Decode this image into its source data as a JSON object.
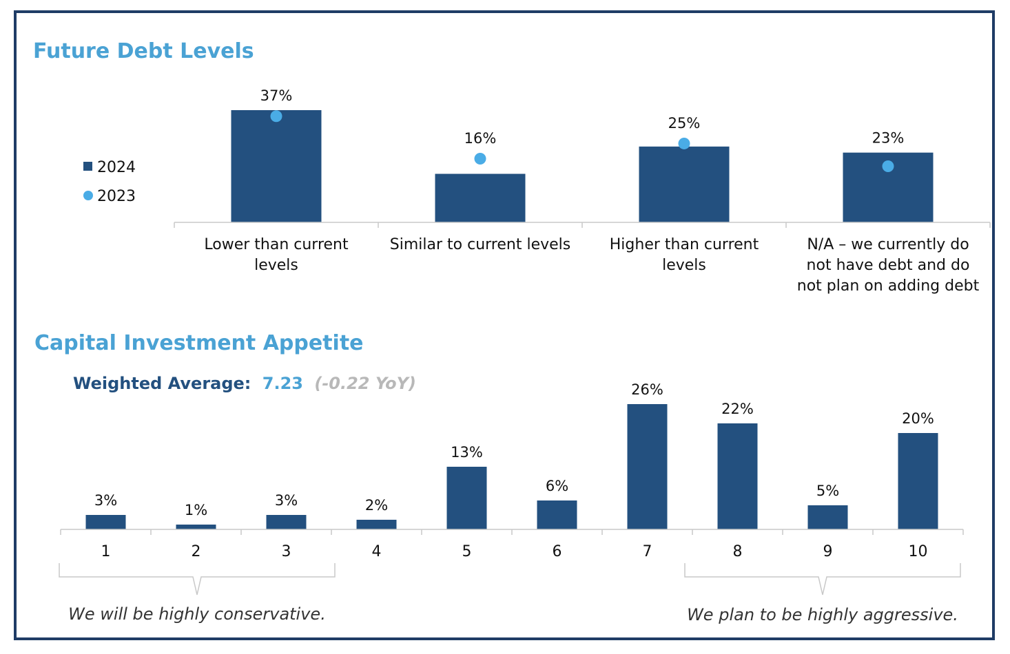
{
  "colors": {
    "frame": "#1f3c66",
    "bar": "#23507f",
    "dot": "#4aace6",
    "title": "#4aa2d4",
    "wa_label": "#23507f",
    "wa_value": "#4aa2d4",
    "wa_change": "#b8b8b8",
    "axis": "#c8c8c8"
  },
  "chart_data": [
    {
      "type": "bar",
      "title": "Future Debt Levels",
      "categories": [
        [
          "Lower than current",
          "levels"
        ],
        [
          "Similar to current levels"
        ],
        [
          "Higher than current",
          "levels"
        ],
        [
          "N/A – we currently do",
          "not have debt and do",
          "not plan on adding debt"
        ]
      ],
      "series": [
        {
          "name": "2024",
          "kind": "bar",
          "values": [
            37,
            16,
            25,
            23
          ]
        },
        {
          "name": "2023",
          "kind": "dot",
          "values": [
            35,
            21,
            26,
            18.5
          ]
        }
      ],
      "data_labels": [
        "37%",
        "16%",
        "25%",
        "23%"
      ],
      "ylim": [
        0,
        40
      ],
      "legend_position": "left"
    },
    {
      "type": "bar",
      "title": "Capital Investment Appetite",
      "subtitle": {
        "label": "Weighted Average:",
        "value": "7.23",
        "change": "(-0.22 YoY)"
      },
      "categories": [
        "1",
        "2",
        "3",
        "4",
        "5",
        "6",
        "7",
        "8",
        "9",
        "10"
      ],
      "values": [
        3,
        1,
        3,
        2,
        13,
        6,
        26,
        22,
        5,
        20
      ],
      "data_labels": [
        "3%",
        "1%",
        "3%",
        "2%",
        "13%",
        "6%",
        "26%",
        "22%",
        "5%",
        "20%"
      ],
      "ylim": [
        0,
        26
      ],
      "annotations": {
        "left": "We will be highly conservative.",
        "right": "We plan to be highly aggressive."
      }
    }
  ]
}
